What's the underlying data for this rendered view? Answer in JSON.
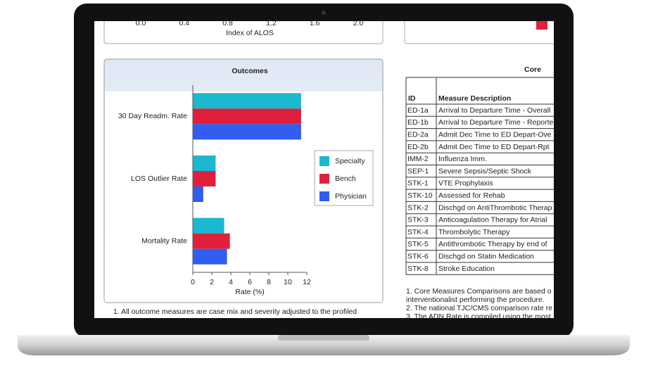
{
  "top_chart": {
    "xlabel": "Index of ALOS",
    "xlim": [
      0,
      2.0
    ],
    "xticks": [
      {
        "value": 0,
        "label": "0.0"
      },
      {
        "value": 0.4,
        "label": "0.4"
      },
      {
        "value": 0.8,
        "label": "0.8"
      },
      {
        "value": 1.2,
        "label": "1.2"
      },
      {
        "value": 1.6,
        "label": "1.6"
      },
      {
        "value": 2.0,
        "label": "2.0"
      }
    ]
  },
  "chart_data": {
    "type": "bar",
    "orientation": "horizontal",
    "title": "Outcomes",
    "xlabel": "Rate (%)",
    "categories": [
      "30 Day Readm. Rate",
      "LOS Outlier Rate",
      "Mortality Rate"
    ],
    "series": [
      {
        "name": "Specialty",
        "color": "#1bb8cf",
        "values": [
          11.4,
          2.4,
          3.3
        ]
      },
      {
        "name": "Bench",
        "color": "#e0203a",
        "values": [
          11.4,
          2.4,
          3.9
        ]
      },
      {
        "name": "Physician",
        "color": "#2f5ef0",
        "values": [
          11.4,
          1.1,
          3.6
        ]
      }
    ],
    "xlim": [
      0,
      12
    ],
    "xticks": [
      0,
      2,
      4,
      6,
      8,
      10,
      12
    ],
    "legend": "right"
  },
  "outcome_note": "1. All outcome measures are case mix and severity adjusted to the profiled",
  "table": {
    "title": "Core",
    "columns": [
      "ID",
      "Measure Description"
    ],
    "rows": [
      [
        "ED-1a",
        "Arrival to Departure Time - Overall"
      ],
      [
        "ED-1b",
        "Arrival to Departure Time - Reporte"
      ],
      [
        "ED-2a",
        "Admit Dec Time to ED Depart-Ove"
      ],
      [
        "ED-2b",
        "Admit Dec Time to ED Depart-Rpt"
      ],
      [
        "IMM-2",
        "Influenza Imm."
      ],
      [
        "SEP-1",
        "Severe Sepsis/Septic Shock"
      ],
      [
        "STK-1",
        "VTE Prophylaxis"
      ],
      [
        "STK-10",
        "Assessed for Rehab"
      ],
      [
        "STK-2",
        "Dischgd on AntiThrombotic Therap"
      ],
      [
        "STK-3",
        "Anticoagulation Therapy for Atrial"
      ],
      [
        "STK-4",
        "Thrombolytic Therapy"
      ],
      [
        "STK-5",
        "Antithrombotic Therapy by end of"
      ],
      [
        "STK-6",
        "Dischgd on Statin Medication"
      ],
      [
        "STK-8",
        "Stroke Education"
      ]
    ]
  },
  "table_notes": [
    "1. Core Measures Comparisons are based o",
    "interventionalist performing the procedure.",
    "2. The national TJC/CMS comparison rate re",
    "3. The ADN Rate is compiled using the most"
  ]
}
